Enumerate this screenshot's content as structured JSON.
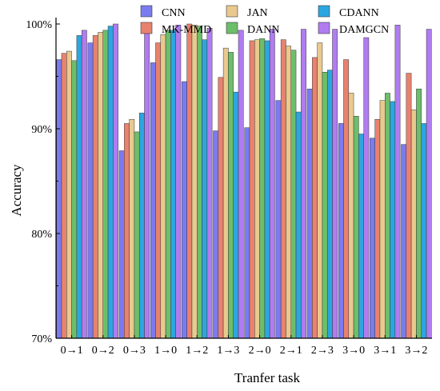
{
  "chart_data": {
    "type": "bar",
    "title": "",
    "xlabel": "Tranfer task",
    "ylabel": "Accuracy",
    "ylim": [
      70,
      100
    ],
    "yticks": [
      "70%",
      "80%",
      "90%",
      "100%"
    ],
    "grid": false,
    "legend_position": "top",
    "categories": [
      "0→1",
      "0→2",
      "0→3",
      "1→0",
      "1→2",
      "1→3",
      "2→0",
      "2→1",
      "2→3",
      "3→0",
      "3→1",
      "3→2"
    ],
    "series": [
      {
        "name": "CNN",
        "color": "#7B7BF0",
        "values": [
          96.6,
          98.2,
          87.9,
          96.3,
          94.5,
          89.8,
          90.1,
          92.7,
          93.8,
          90.5,
          89.1,
          88.5
        ]
      },
      {
        "name": "MK-MMD",
        "color": "#E8826E",
        "values": [
          97.2,
          98.9,
          90.5,
          98.2,
          100.0,
          94.9,
          98.4,
          98.5,
          96.8,
          96.6,
          90.9,
          95.3
        ]
      },
      {
        "name": "JAN",
        "color": "#E9C98E",
        "values": [
          97.4,
          99.2,
          90.9,
          99.0,
          99.9,
          97.7,
          98.5,
          97.9,
          98.2,
          93.4,
          92.7,
          91.8
        ]
      },
      {
        "name": "DANN",
        "color": "#6DBE6A",
        "values": [
          96.5,
          99.4,
          89.7,
          99.4,
          99.8,
          97.3,
          98.6,
          97.5,
          95.4,
          91.2,
          93.4,
          93.8
        ]
      },
      {
        "name": "CDANN",
        "color": "#2BA6E0",
        "values": [
          98.9,
          99.8,
          91.5,
          99.4,
          98.5,
          93.5,
          98.4,
          91.6,
          95.6,
          89.5,
          92.6,
          90.5
        ]
      },
      {
        "name": "DAMGCN",
        "color": "#B07CF0",
        "values": [
          99.4,
          100.0,
          99.1,
          99.9,
          99.6,
          99.4,
          99.5,
          99.5,
          99.5,
          98.7,
          99.9,
          99.5
        ]
      }
    ]
  }
}
